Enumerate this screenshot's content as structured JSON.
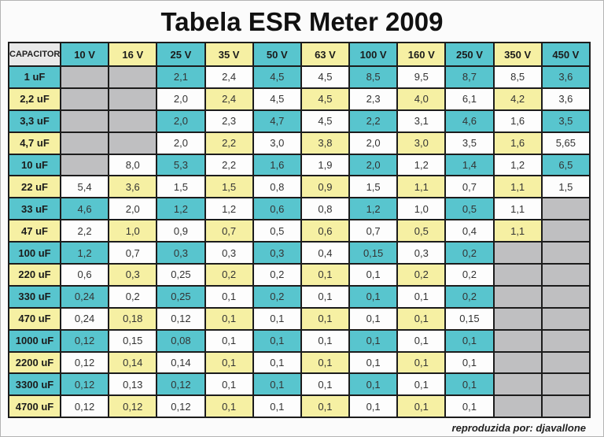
{
  "page": {
    "title": "Tabela ESR Meter 2009",
    "footer_credit": "reproduzida por: djavallone"
  },
  "colors": {
    "teal": "#58c5ce",
    "yellow": "#f6f0a3",
    "empty_gray": "#bfbfc1",
    "header_gray": "#e9e9e9"
  },
  "table": {
    "header_label": "CAPACITOR",
    "voltage_headers": [
      "10 V",
      "16 V",
      "25 V",
      "35 V",
      "50 V",
      "63 V",
      "100 V",
      "160 V",
      "250 V",
      "350 V",
      "450 V"
    ],
    "rows": [
      {
        "capacitor": "1 uF",
        "values": [
          null,
          null,
          "2,1",
          "2,4",
          "4,5",
          "4,5",
          "8,5",
          "9,5",
          "8,7",
          "8,5",
          "3,6"
        ]
      },
      {
        "capacitor": "2,2 uF",
        "values": [
          null,
          null,
          "2,0",
          "2,4",
          "4,5",
          "4,5",
          "2,3",
          "4,0",
          "6,1",
          "4,2",
          "3,6"
        ]
      },
      {
        "capacitor": "3,3 uF",
        "values": [
          null,
          null,
          "2,0",
          "2,3",
          "4,7",
          "4,5",
          "2,2",
          "3,1",
          "4,6",
          "1,6",
          "3,5"
        ]
      },
      {
        "capacitor": "4,7 uF",
        "values": [
          null,
          null,
          "2,0",
          "2,2",
          "3,0",
          "3,8",
          "2,0",
          "3,0",
          "3,5",
          "1,6",
          "5,65"
        ]
      },
      {
        "capacitor": "10 uF",
        "values": [
          null,
          "8,0",
          "5,3",
          "2,2",
          "1,6",
          "1,9",
          "2,0",
          "1,2",
          "1,4",
          "1,2",
          "6,5"
        ]
      },
      {
        "capacitor": "22 uF",
        "values": [
          "5,4",
          "3,6",
          "1,5",
          "1,5",
          "0,8",
          "0,9",
          "1,5",
          "1,1",
          "0,7",
          "1,1",
          "1,5"
        ]
      },
      {
        "capacitor": "33 uF",
        "values": [
          "4,6",
          "2,0",
          "1,2",
          "1,2",
          "0,6",
          "0,8",
          "1,2",
          "1,0",
          "0,5",
          "1,1",
          null
        ]
      },
      {
        "capacitor": "47 uF",
        "values": [
          "2,2",
          "1,0",
          "0,9",
          "0,7",
          "0,5",
          "0,6",
          "0,7",
          "0,5",
          "0,4",
          "1,1",
          null
        ]
      },
      {
        "capacitor": "100 uF",
        "values": [
          "1,2",
          "0,7",
          "0,3",
          "0,3",
          "0,3",
          "0,4",
          "0,15",
          "0,3",
          "0,2",
          null,
          null
        ]
      },
      {
        "capacitor": "220 uF",
        "values": [
          "0,6",
          "0,3",
          "0,25",
          "0,2",
          "0,2",
          "0,1",
          "0,1",
          "0,2",
          "0,2",
          null,
          null
        ]
      },
      {
        "capacitor": "330 uF",
        "values": [
          "0,24",
          "0,2",
          "0,25",
          "0,1",
          "0,2",
          "0,1",
          "0,1",
          "0,1",
          "0,2",
          null,
          null
        ]
      },
      {
        "capacitor": "470 uF",
        "values": [
          "0,24",
          "0,18",
          "0,12",
          "0,1",
          "0,1",
          "0,1",
          "0,1",
          "0,1",
          "0,15",
          null,
          null
        ]
      },
      {
        "capacitor": "1000 uF",
        "values": [
          "0,12",
          "0,15",
          "0,08",
          "0,1",
          "0,1",
          "0,1",
          "0,1",
          "0,1",
          "0,1",
          null,
          null
        ]
      },
      {
        "capacitor": "2200 uF",
        "values": [
          "0,12",
          "0,14",
          "0,14",
          "0,1",
          "0,1",
          "0,1",
          "0,1",
          "0,1",
          "0,1",
          null,
          null
        ]
      },
      {
        "capacitor": "3300 uF",
        "values": [
          "0,12",
          "0,13",
          "0,12",
          "0,1",
          "0,1",
          "0,1",
          "0,1",
          "0,1",
          "0,1",
          null,
          null
        ]
      },
      {
        "capacitor": "4700 uF",
        "values": [
          "0,12",
          "0,12",
          "0,12",
          "0,1",
          "0,1",
          "0,1",
          "0,1",
          "0,1",
          "0,1",
          null,
          null
        ]
      }
    ]
  }
}
